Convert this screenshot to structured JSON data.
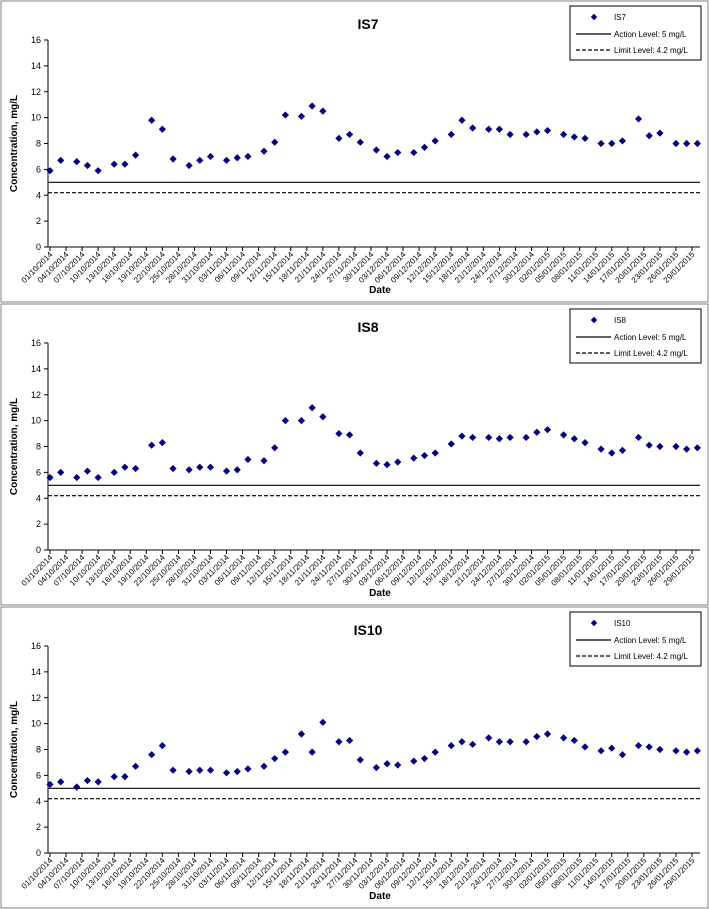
{
  "x_dates": [
    "2014-10-01",
    "2014-10-03",
    "2014-10-06",
    "2014-10-08",
    "2014-10-10",
    "2014-10-13",
    "2014-10-15",
    "2014-10-17",
    "2014-10-20",
    "2014-10-22",
    "2014-10-24",
    "2014-10-27",
    "2014-10-29",
    "2014-10-31",
    "2014-11-03",
    "2014-11-05",
    "2014-11-07",
    "2014-11-10",
    "2014-11-12",
    "2014-11-14",
    "2014-11-17",
    "2014-11-19",
    "2014-11-21",
    "2014-11-24",
    "2014-11-26",
    "2014-11-28",
    "2014-12-01",
    "2014-12-03",
    "2014-12-05",
    "2014-12-08",
    "2014-12-10",
    "2014-12-12",
    "2014-12-15",
    "2014-12-17",
    "2014-12-19",
    "2014-12-22",
    "2014-12-24",
    "2014-12-26",
    "2014-12-29",
    "2014-12-31",
    "2015-01-02",
    "2015-01-05",
    "2015-01-07",
    "2015-01-09",
    "2015-01-12",
    "2015-01-14",
    "2015-01-16",
    "2015-01-19",
    "2015-01-21",
    "2015-01-23",
    "2015-01-26",
    "2015-01-28",
    "2015-01-30"
  ],
  "chart_data": [
    {
      "type": "scatter",
      "title": "IS7",
      "xlabel": "Date",
      "ylabel": "Concentration, mg/L",
      "ylim": [
        0,
        16
      ],
      "yticks": [
        0,
        2,
        4,
        6,
        8,
        10,
        12,
        14,
        16
      ],
      "xticks": [
        "01/10/2014",
        "04/10/2014",
        "07/10/2014",
        "10/10/2014",
        "13/10/2014",
        "16/10/2014",
        "19/10/2014",
        "22/10/2014",
        "25/10/2014",
        "28/10/2014",
        "31/10/2014",
        "03/11/2014",
        "06/11/2014",
        "09/11/2014",
        "12/11/2014",
        "15/11/2014",
        "18/11/2014",
        "21/11/2014",
        "24/11/2014",
        "27/11/2014",
        "30/11/2014",
        "03/12/2014",
        "06/12/2014",
        "09/12/2014",
        "12/12/2014",
        "15/12/2014",
        "18/12/2014",
        "21/12/2014",
        "24/12/2014",
        "27/12/2014",
        "30/12/2014",
        "02/01/2015",
        "05/01/2015",
        "08/01/2015",
        "11/01/2015",
        "14/01/2015",
        "17/01/2015",
        "20/01/2015",
        "23/01/2015",
        "26/01/2015",
        "29/01/2015"
      ],
      "grid": false,
      "legend_position": "top-right",
      "series": [
        {
          "name": "IS7",
          "marker": "diamond",
          "color": "#000080",
          "values": [
            5.9,
            6.7,
            6.6,
            6.3,
            5.9,
            6.4,
            6.4,
            7.1,
            9.8,
            9.1,
            6.8,
            6.3,
            6.7,
            7.0,
            6.7,
            6.9,
            7.0,
            7.4,
            8.1,
            10.2,
            10.1,
            10.9,
            10.5,
            8.4,
            8.7,
            8.1,
            7.5,
            7.0,
            7.3,
            7.3,
            7.7,
            8.2,
            8.7,
            9.8,
            9.2,
            9.1,
            9.1,
            8.7,
            8.7,
            8.9,
            9.0,
            8.7,
            8.5,
            8.4,
            8.0,
            8.0,
            8.2,
            9.9,
            8.6,
            8.8,
            8.0,
            8.0,
            8.0
          ]
        }
      ],
      "reference_lines": [
        {
          "name": "Action Level: 5 mg/L",
          "value": 5,
          "style": "solid"
        },
        {
          "name": "Limit Level: 4.2 mg/L",
          "value": 4.2,
          "style": "dashed"
        }
      ]
    },
    {
      "type": "scatter",
      "title": "IS8",
      "xlabel": "Date",
      "ylabel": "Concentration, mg/L",
      "ylim": [
        0,
        16
      ],
      "yticks": [
        0,
        2,
        4,
        6,
        8,
        10,
        12,
        14,
        16
      ],
      "xticks": [
        "01/10/2014",
        "04/10/2014",
        "07/10/2014",
        "10/10/2014",
        "13/10/2014",
        "16/10/2014",
        "19/10/2014",
        "22/10/2014",
        "25/10/2014",
        "28/10/2014",
        "31/10/2014",
        "03/11/2014",
        "06/11/2014",
        "09/11/2014",
        "12/11/2014",
        "15/11/2014",
        "18/11/2014",
        "21/11/2014",
        "24/11/2014",
        "27/11/2014",
        "30/11/2014",
        "03/12/2014",
        "06/12/2014",
        "09/12/2014",
        "12/12/2014",
        "15/12/2014",
        "18/12/2014",
        "21/12/2014",
        "24/12/2014",
        "27/12/2014",
        "30/12/2014",
        "02/01/2015",
        "05/01/2015",
        "08/01/2015",
        "11/01/2015",
        "14/01/2015",
        "17/01/2015",
        "20/01/2015",
        "23/01/2015",
        "26/01/2015",
        "29/01/2015"
      ],
      "grid": false,
      "legend_position": "top-right",
      "series": [
        {
          "name": "IS8",
          "marker": "diamond",
          "color": "#000080",
          "values": [
            5.6,
            6.0,
            5.6,
            6.1,
            5.6,
            6.0,
            6.4,
            6.3,
            8.1,
            8.3,
            6.3,
            6.2,
            6.4,
            6.4,
            6.1,
            6.2,
            7.0,
            6.9,
            7.9,
            10.0,
            10.0,
            11.0,
            10.3,
            9.0,
            8.9,
            7.5,
            6.7,
            6.6,
            6.8,
            7.1,
            7.3,
            7.5,
            8.2,
            8.8,
            8.7,
            8.7,
            8.6,
            8.7,
            8.7,
            9.1,
            9.3,
            8.9,
            8.6,
            8.3,
            7.8,
            7.5,
            7.7,
            8.7,
            8.1,
            8.0,
            8.0,
            7.8,
            7.9
          ]
        }
      ],
      "reference_lines": [
        {
          "name": "Action Level: 5 mg/L",
          "value": 5,
          "style": "solid"
        },
        {
          "name": "Limit Level: 4.2 mg/L",
          "value": 4.2,
          "style": "dashed"
        }
      ]
    },
    {
      "type": "scatter",
      "title": "IS10",
      "xlabel": "Date",
      "ylabel": "Concentration, mg/L",
      "ylim": [
        0,
        16
      ],
      "yticks": [
        0,
        2,
        4,
        6,
        8,
        10,
        12,
        14,
        16
      ],
      "xticks": [
        "01/10/2014",
        "04/10/2014",
        "07/10/2014",
        "10/10/2014",
        "13/10/2014",
        "16/10/2014",
        "19/10/2014",
        "22/10/2014",
        "25/10/2014",
        "28/10/2014",
        "31/10/2014",
        "03/11/2014",
        "06/11/2014",
        "09/11/2014",
        "12/11/2014",
        "15/11/2014",
        "18/11/2014",
        "21/11/2014",
        "24/11/2014",
        "27/11/2014",
        "30/11/2014",
        "03/12/2014",
        "06/12/2014",
        "09/12/2014",
        "12/12/2014",
        "15/12/2014",
        "18/12/2014",
        "21/12/2014",
        "24/12/2014",
        "27/12/2014",
        "30/12/2014",
        "02/01/2015",
        "05/01/2015",
        "08/01/2015",
        "11/01/2015",
        "14/01/2015",
        "17/01/2015",
        "20/01/2015",
        "23/01/2015",
        "26/01/2015",
        "29/01/2015"
      ],
      "grid": false,
      "legend_position": "top-right",
      "series": [
        {
          "name": "IS10",
          "marker": "diamond",
          "color": "#000080",
          "values": [
            5.3,
            5.5,
            5.1,
            5.6,
            5.5,
            5.9,
            5.9,
            6.7,
            7.6,
            8.3,
            6.4,
            6.3,
            6.4,
            6.4,
            6.2,
            6.3,
            6.5,
            6.7,
            7.3,
            7.8,
            9.2,
            7.8,
            10.1,
            8.6,
            8.7,
            7.2,
            6.6,
            6.9,
            6.8,
            7.1,
            7.3,
            7.8,
            8.3,
            8.6,
            8.4,
            8.9,
            8.6,
            8.6,
            8.6,
            9.0,
            9.2,
            8.9,
            8.7,
            8.2,
            7.9,
            8.1,
            7.6,
            8.3,
            8.2,
            8.0,
            7.9,
            7.8,
            7.9
          ]
        }
      ],
      "reference_lines": [
        {
          "name": "Action Level: 5 mg/L",
          "value": 5,
          "style": "solid"
        },
        {
          "name": "Limit Level: 4.2 mg/L",
          "value": 4.2,
          "style": "dashed"
        }
      ]
    }
  ]
}
